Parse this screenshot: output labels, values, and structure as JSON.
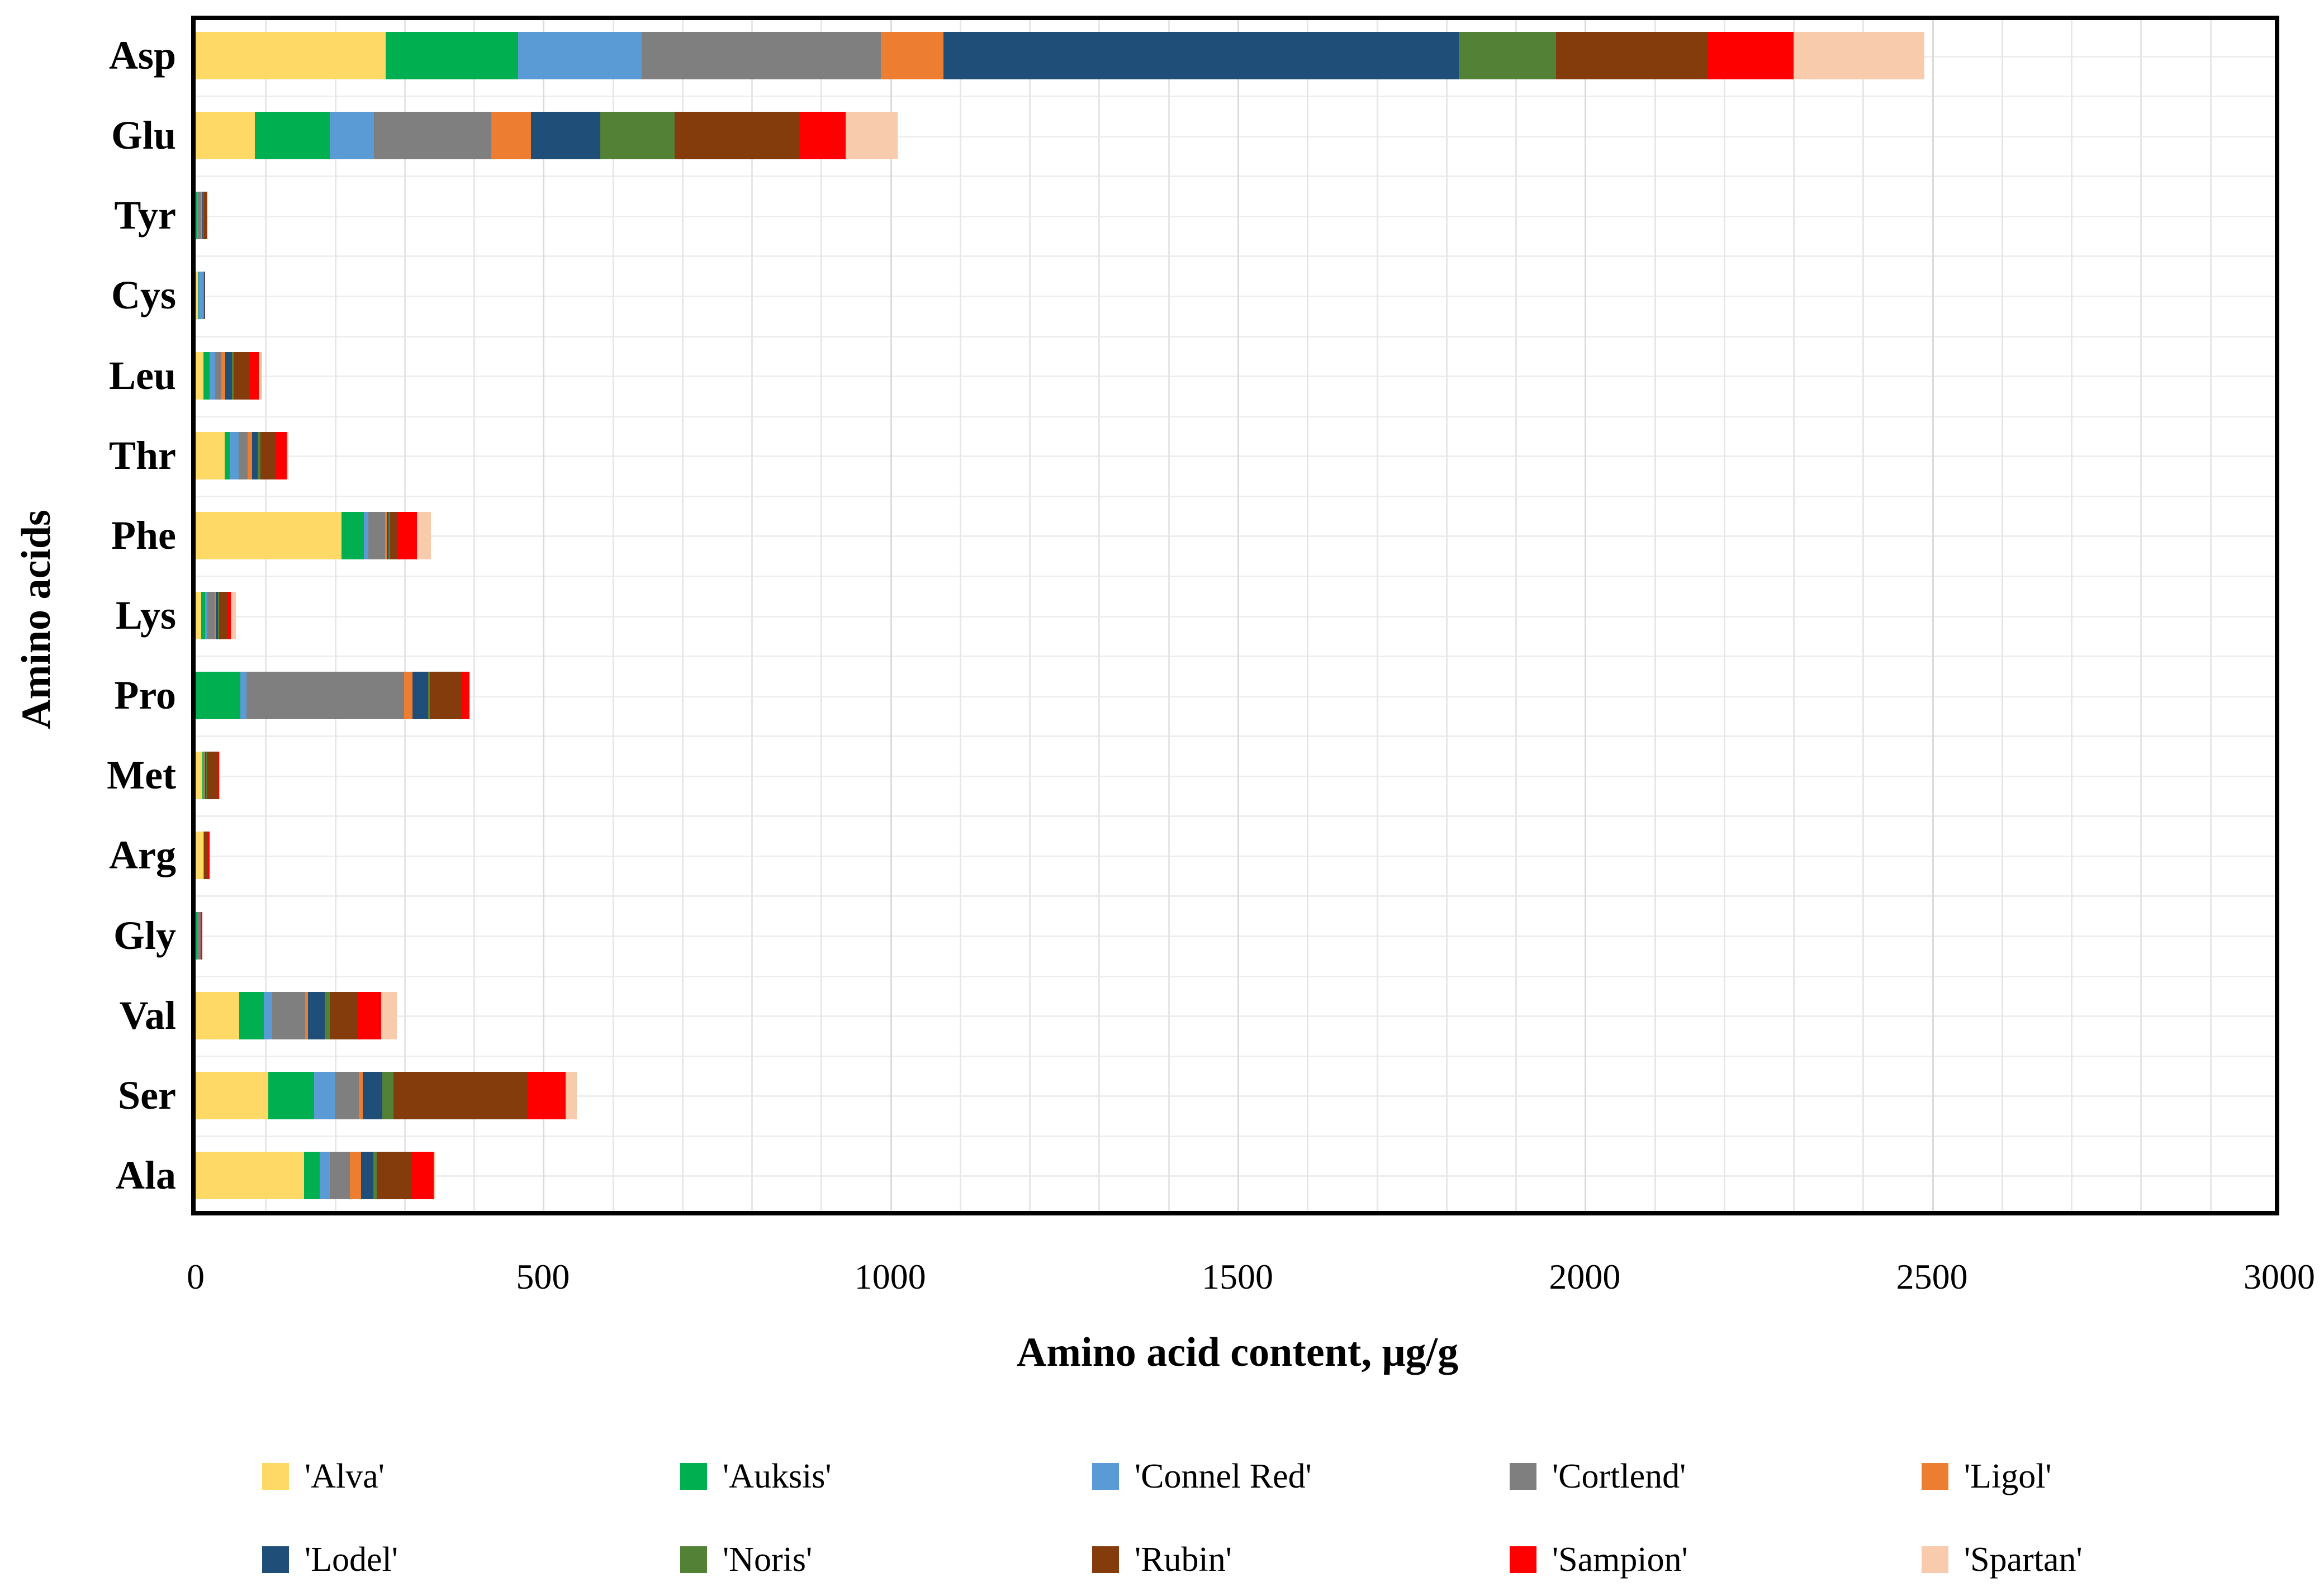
{
  "chart_data": {
    "type": "bar",
    "orientation": "horizontal",
    "stacked": true,
    "title": "",
    "xlabel": "Amino acid content, μg/g",
    "ylabel": "Amino acids",
    "xlim": [
      0,
      3000
    ],
    "xticks": [
      0,
      500,
      1000,
      1500,
      2000,
      2500,
      3000
    ],
    "minor_grid_step": 100,
    "grid": "on",
    "legend_position": "bottom",
    "categories": [
      "Asp",
      "Glu",
      "Tyr",
      "Cys",
      "Leu",
      "Thr",
      "Phe",
      "Lys",
      "Pro",
      "Met",
      "Arg",
      "Gly",
      "Val",
      "Ser",
      "Ala"
    ],
    "series": [
      {
        "name": "'Alva'",
        "color": "#FFD966",
        "values": [
          274,
          85,
          1,
          3,
          11,
          42,
          210,
          8,
          0,
          10,
          11,
          1,
          63,
          105,
          156
        ]
      },
      {
        "name": "'Auksis'",
        "color": "#00B050",
        "values": [
          190,
          108,
          1,
          1,
          9,
          7,
          32,
          6,
          64,
          1,
          0,
          1,
          35,
          66,
          23
        ]
      },
      {
        "name": "'Connel Red'",
        "color": "#5B9BD5",
        "values": [
          178,
          64,
          1,
          7,
          8,
          13,
          7,
          3,
          9,
          1,
          0,
          0,
          12,
          29,
          14
        ]
      },
      {
        "name": "'Cortlend'",
        "color": "#7F7F7F",
        "values": [
          345,
          169,
          5,
          1,
          9,
          13,
          24,
          10,
          227,
          1,
          1,
          5,
          48,
          35,
          29
        ]
      },
      {
        "name": "'Ligol'",
        "color": "#ED7D31",
        "values": [
          90,
          57,
          2,
          0,
          6,
          6,
          2,
          2,
          12,
          1,
          0,
          0,
          4,
          6,
          16
        ]
      },
      {
        "name": "'Lodel'",
        "color": "#1F4E79",
        "values": [
          742,
          100,
          1,
          1,
          9,
          8,
          3,
          3,
          23,
          1,
          0,
          0,
          24,
          28,
          18
        ]
      },
      {
        "name": "'Noris'",
        "color": "#538135",
        "values": [
          140,
          107,
          1,
          0,
          3,
          4,
          2,
          2,
          2,
          1,
          0,
          0,
          7,
          16,
          5
        ]
      },
      {
        "name": "'Rubin'",
        "color": "#843C0C",
        "values": [
          217,
          180,
          4,
          1,
          23,
          23,
          11,
          11,
          47,
          15,
          6,
          0,
          40,
          193,
          50
        ]
      },
      {
        "name": "'Sampion'",
        "color": "#FF0000",
        "values": [
          125,
          66,
          1,
          0,
          13,
          15,
          28,
          6,
          10,
          3,
          2,
          3,
          34,
          55,
          32
        ]
      },
      {
        "name": "'Spartan'",
        "color": "#F8CBAD",
        "values": [
          188,
          75,
          0,
          0,
          5,
          3,
          20,
          7,
          0,
          1,
          0,
          0,
          23,
          16,
          2
        ]
      }
    ]
  },
  "axes": {
    "x_title": "Amino acid content, μg/g",
    "y_title": "Amino acids"
  },
  "legend": {
    "rows": 2,
    "items_per_row": 5
  }
}
